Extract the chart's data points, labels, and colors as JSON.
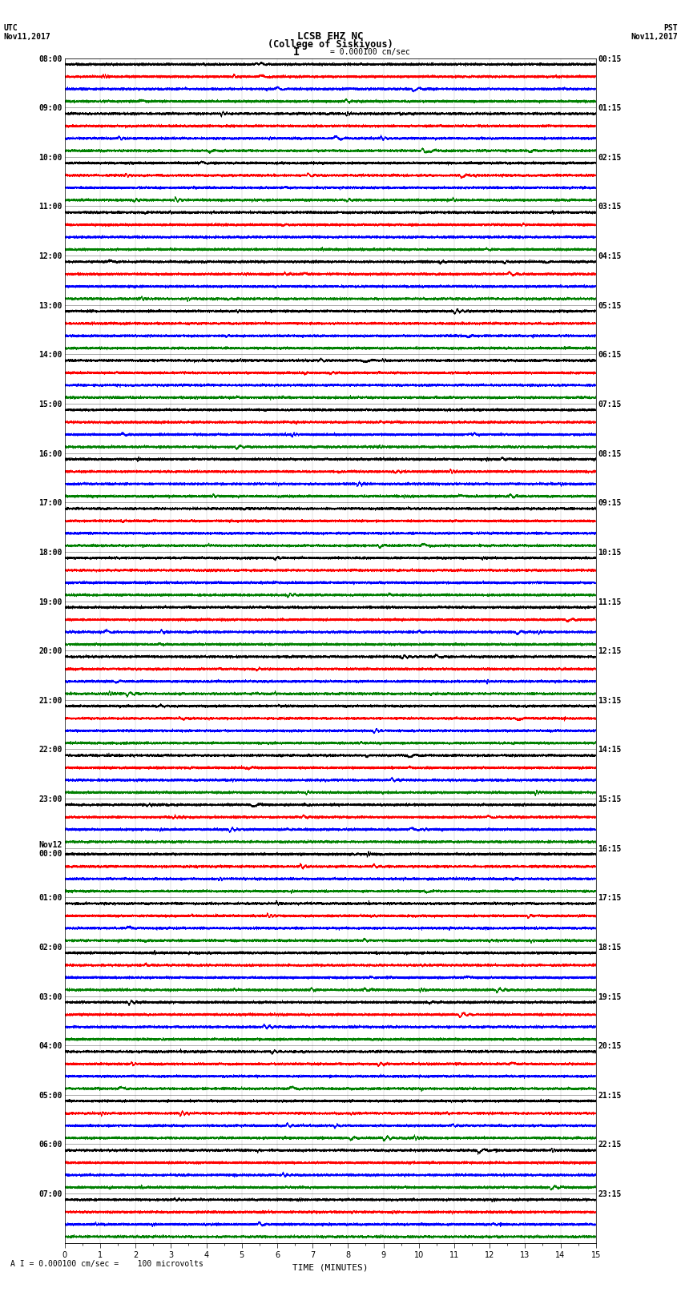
{
  "title_line1": "LCSB EHZ NC",
  "title_line2": "(College of Siskiyous)",
  "scale_label": "= 0.000100 cm/sec",
  "utc_label": "UTC\nNov11,2017",
  "pst_label": "PST\nNov11,2017",
  "bottom_label": "A I = 0.000100 cm/sec =    100 microvolts",
  "xlabel": "TIME (MINUTES)",
  "left_times": [
    "08:00",
    "09:00",
    "10:00",
    "11:00",
    "12:00",
    "13:00",
    "14:00",
    "15:00",
    "16:00",
    "17:00",
    "18:00",
    "19:00",
    "20:00",
    "21:00",
    "22:00",
    "23:00",
    "Nov12\n00:00",
    "01:00",
    "02:00",
    "03:00",
    "04:00",
    "05:00",
    "06:00",
    "07:00"
  ],
  "right_times": [
    "00:15",
    "01:15",
    "02:15",
    "03:15",
    "04:15",
    "05:15",
    "06:15",
    "07:15",
    "08:15",
    "09:15",
    "10:15",
    "11:15",
    "12:15",
    "13:15",
    "14:15",
    "15:15",
    "16:15",
    "17:15",
    "18:15",
    "19:15",
    "20:15",
    "21:15",
    "22:15",
    "23:15"
  ],
  "colors": [
    "black",
    "red",
    "blue",
    "green"
  ],
  "n_rows": 24,
  "traces_per_row": 4,
  "minutes": 15,
  "sample_rate": 50,
  "fig_width": 8.5,
  "fig_height": 16.13,
  "background_color": "white",
  "font_size_title": 9,
  "font_size_labels": 8,
  "font_size_ticks": 7,
  "linewidth": 0.4,
  "amp_scale": 0.28
}
